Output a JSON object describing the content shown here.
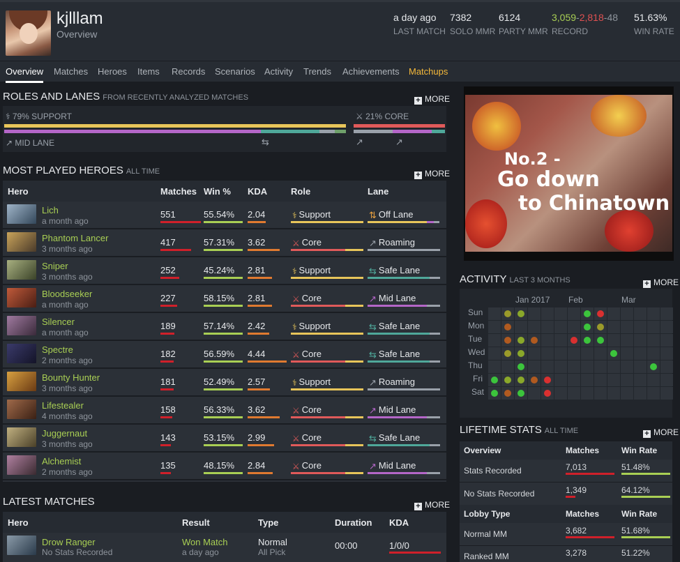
{
  "profile": {
    "username": "kjlllam",
    "subtitle": "Overview"
  },
  "header_stats": [
    {
      "value": "a day ago",
      "label": "LAST MATCH"
    },
    {
      "value": "7382",
      "label": "SOLO MMR"
    },
    {
      "value": "6124",
      "label": "PARTY MMR"
    },
    {
      "label": "RECORD",
      "wins": "3,059",
      "losses": "2,818",
      "abandons": "48"
    },
    {
      "value": "51.63%",
      "label": "WIN RATE"
    }
  ],
  "nav": [
    "Overview",
    "Matches",
    "Heroes",
    "Items",
    "Records",
    "Scenarios",
    "Activity",
    "Trends",
    "Achievements",
    "Matchups"
  ],
  "more_label": "MORE",
  "roles": {
    "title": "ROLES AND LANES",
    "subtitle": "FROM RECENTLY ANALYZED MATCHES",
    "support": "79% SUPPORT",
    "core": "21% CORE",
    "support_pct": 79,
    "core_pct": 21,
    "lane": "MID LANE"
  },
  "heroes": {
    "title": "MOST PLAYED HEROES",
    "subtitle": "ALL TIME",
    "columns": [
      "Hero",
      "Matches",
      "Win %",
      "KDA",
      "Role",
      "Lane"
    ],
    "rows": [
      {
        "name": "Lich",
        "time": "a month ago",
        "matches": "551",
        "win": "55.54%",
        "kda": "2.04",
        "role": "Support",
        "lane": "Off Lane",
        "mf": 1.0,
        "wf": 0.56,
        "kf": 0.46
      },
      {
        "name": "Phantom Lancer",
        "time": "3 months ago",
        "matches": "417",
        "win": "57.31%",
        "kda": "3.62",
        "role": "Core",
        "lane": "Roaming",
        "mf": 0.76,
        "wf": 0.57,
        "kf": 0.82
      },
      {
        "name": "Sniper",
        "time": "3 months ago",
        "matches": "252",
        "win": "45.24%",
        "kda": "2.81",
        "role": "Support",
        "lane": "Safe Lane",
        "mf": 0.46,
        "wf": 0.45,
        "kf": 0.63
      },
      {
        "name": "Bloodseeker",
        "time": "a month ago",
        "matches": "227",
        "win": "58.15%",
        "kda": "2.81",
        "role": "Core",
        "lane": "Mid Lane",
        "mf": 0.41,
        "wf": 0.58,
        "kf": 0.63
      },
      {
        "name": "Silencer",
        "time": "a month ago",
        "matches": "189",
        "win": "57.14%",
        "kda": "2.42",
        "role": "Support",
        "lane": "Safe Lane",
        "mf": 0.34,
        "wf": 0.57,
        "kf": 0.55
      },
      {
        "name": "Spectre",
        "time": "2 months ago",
        "matches": "182",
        "win": "56.59%",
        "kda": "4.44",
        "role": "Core",
        "lane": "Safe Lane",
        "mf": 0.33,
        "wf": 0.57,
        "kf": 1.0
      },
      {
        "name": "Bounty Hunter",
        "time": "3 months ago",
        "matches": "181",
        "win": "52.49%",
        "kda": "2.57",
        "role": "Support",
        "lane": "Roaming",
        "mf": 0.33,
        "wf": 0.52,
        "kf": 0.58
      },
      {
        "name": "Lifestealer",
        "time": "4 months ago",
        "matches": "158",
        "win": "56.33%",
        "kda": "3.62",
        "role": "Core",
        "lane": "Mid Lane",
        "mf": 0.29,
        "wf": 0.56,
        "kf": 0.82
      },
      {
        "name": "Juggernaut",
        "time": "3 months ago",
        "matches": "143",
        "win": "53.15%",
        "kda": "2.99",
        "role": "Core",
        "lane": "Safe Lane",
        "mf": 0.26,
        "wf": 0.53,
        "kf": 0.67
      },
      {
        "name": "Alchemist",
        "time": "2 months ago",
        "matches": "135",
        "win": "48.15%",
        "kda": "2.84",
        "role": "Core",
        "lane": "Mid Lane",
        "mf": 0.25,
        "wf": 0.48,
        "kf": 0.64
      }
    ]
  },
  "latest": {
    "title": "LATEST MATCHES",
    "columns": [
      "Hero",
      "Result",
      "Type",
      "Duration",
      "KDA"
    ],
    "row": {
      "name": "Drow Ranger",
      "sub": "No Stats Recorded",
      "result": "Won Match",
      "result_time": "a day ago",
      "type": "Normal",
      "type_sub": "All Pick",
      "duration": "00:00",
      "kda": "1/0/0"
    }
  },
  "banner": {
    "line1": "No.2 -",
    "line2": "Go down",
    "line3": "to Chinatown"
  },
  "activity": {
    "title": "ACTIVITY",
    "subtitle": "LAST 3 MONTHS",
    "months": [
      "Jan 2017",
      "Feb",
      "Mar"
    ],
    "days": [
      "Sun",
      "Mon",
      "Tue",
      "Wed",
      "Thu",
      "Fri",
      "Sat"
    ],
    "cells": [
      {
        "d": 0,
        "w": 1,
        "c": "#9a9a2a"
      },
      {
        "d": 0,
        "w": 2,
        "c": "#8aa82a"
      },
      {
        "d": 0,
        "w": 7,
        "c": "#3cc43c"
      },
      {
        "d": 0,
        "w": 8,
        "c": "#d93030"
      },
      {
        "d": 1,
        "w": 1,
        "c": "#b05a20"
      },
      {
        "d": 1,
        "w": 7,
        "c": "#3cc43c"
      },
      {
        "d": 1,
        "w": 8,
        "c": "#9a9a2a"
      },
      {
        "d": 2,
        "w": 1,
        "c": "#b05a20"
      },
      {
        "d": 2,
        "w": 2,
        "c": "#8aa82a"
      },
      {
        "d": 2,
        "w": 3,
        "c": "#b05a20"
      },
      {
        "d": 2,
        "w": 6,
        "c": "#d93030"
      },
      {
        "d": 2,
        "w": 7,
        "c": "#3cc43c"
      },
      {
        "d": 2,
        "w": 8,
        "c": "#3cc43c"
      },
      {
        "d": 3,
        "w": 1,
        "c": "#9a9a2a"
      },
      {
        "d": 3,
        "w": 2,
        "c": "#8aa82a"
      },
      {
        "d": 3,
        "w": 9,
        "c": "#3cc43c"
      },
      {
        "d": 4,
        "w": 2,
        "c": "#3cc43c"
      },
      {
        "d": 4,
        "w": 12,
        "c": "#3cc43c"
      },
      {
        "d": 5,
        "w": 0,
        "c": "#3cc43c"
      },
      {
        "d": 5,
        "w": 1,
        "c": "#8aa82a"
      },
      {
        "d": 5,
        "w": 2,
        "c": "#8aa82a"
      },
      {
        "d": 5,
        "w": 3,
        "c": "#b05a20"
      },
      {
        "d": 5,
        "w": 4,
        "c": "#d93030"
      },
      {
        "d": 6,
        "w": 0,
        "c": "#3cc43c"
      },
      {
        "d": 6,
        "w": 1,
        "c": "#b05a20"
      },
      {
        "d": 6,
        "w": 2,
        "c": "#3cc43c"
      },
      {
        "d": 6,
        "w": 4,
        "c": "#d93030"
      }
    ]
  },
  "lifetime": {
    "title": "LIFETIME STATS",
    "subtitle": "ALL TIME",
    "head1": [
      "Overview",
      "Matches",
      "Win Rate"
    ],
    "rows1": [
      {
        "label": "Stats Recorded",
        "matches": "7,013",
        "win": "51.48%"
      },
      {
        "label": "No Stats Recorded",
        "matches": "1,349",
        "win": "64.12%"
      }
    ],
    "head2": [
      "Lobby Type",
      "Matches",
      "Win Rate"
    ],
    "rows2": [
      {
        "label": "Normal MM",
        "matches": "3,682",
        "win": "51.68%"
      },
      {
        "label": "Ranked MM",
        "matches": "3,278",
        "win": "51.22%"
      }
    ]
  }
}
